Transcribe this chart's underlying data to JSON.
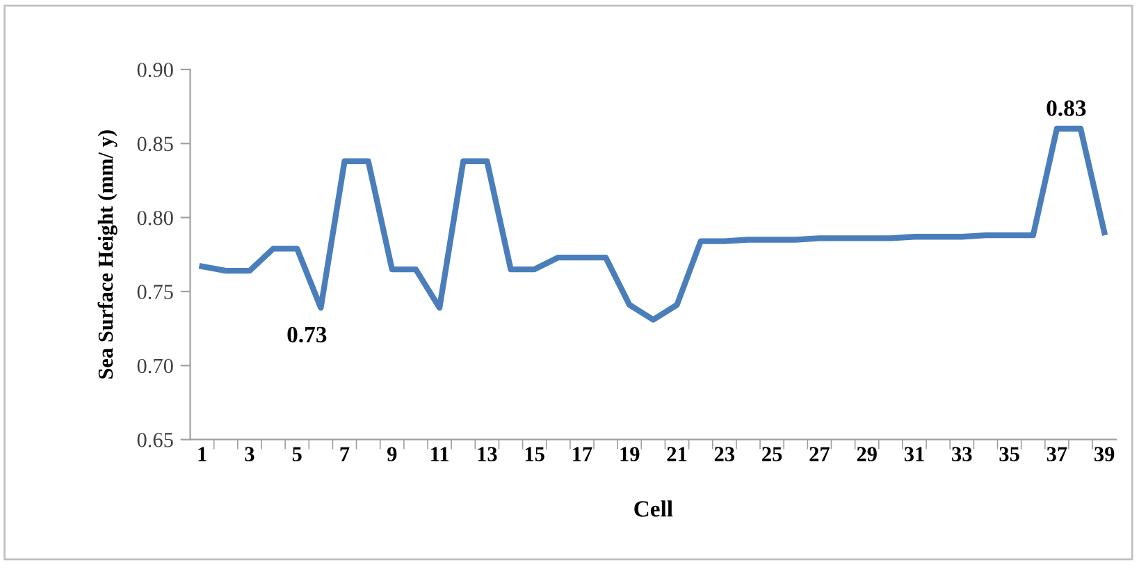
{
  "chart_data": {
    "type": "line",
    "xlabel": "Cell",
    "ylabel": "Sea Surface Height (mm/ y)",
    "categories": [
      "1",
      null,
      "3",
      null,
      "5",
      null,
      "7",
      null,
      "9",
      null,
      "11",
      null,
      "13",
      null,
      "15",
      null,
      "17",
      null,
      "19",
      null,
      "21",
      null,
      "23",
      null,
      "25",
      null,
      "27",
      null,
      "29",
      null,
      "31",
      null,
      "33",
      null,
      "35",
      null,
      "37",
      null,
      "39"
    ],
    "series": [
      {
        "color": "#4a7ebb",
        "values": [
          0.767,
          0.764,
          0.764,
          0.779,
          0.779,
          0.739,
          0.838,
          0.838,
          0.765,
          0.765,
          0.739,
          0.838,
          0.838,
          0.765,
          0.765,
          0.773,
          0.773,
          0.773,
          0.741,
          0.731,
          0.741,
          0.784,
          0.784,
          0.785,
          0.785,
          0.785,
          0.786,
          0.786,
          0.786,
          0.786,
          0.787,
          0.787,
          0.787,
          0.788,
          0.788,
          0.788,
          0.86,
          0.86,
          0.79
        ]
      }
    ],
    "ylim": [
      0.65,
      0.9
    ],
    "yticks": [
      {
        "value": 0.65,
        "label": "0.65"
      },
      {
        "value": 0.7,
        "label": "0.70"
      },
      {
        "value": 0.75,
        "label": "0.75"
      },
      {
        "value": 0.8,
        "label": "0.80"
      },
      {
        "value": 0.85,
        "label": "0.85"
      },
      {
        "value": 0.9,
        "label": "0.90"
      }
    ],
    "annotations": [
      "0.73",
      "0.83"
    ],
    "grid": false,
    "legend": false,
    "marker": "none",
    "line_style": "solid"
  }
}
